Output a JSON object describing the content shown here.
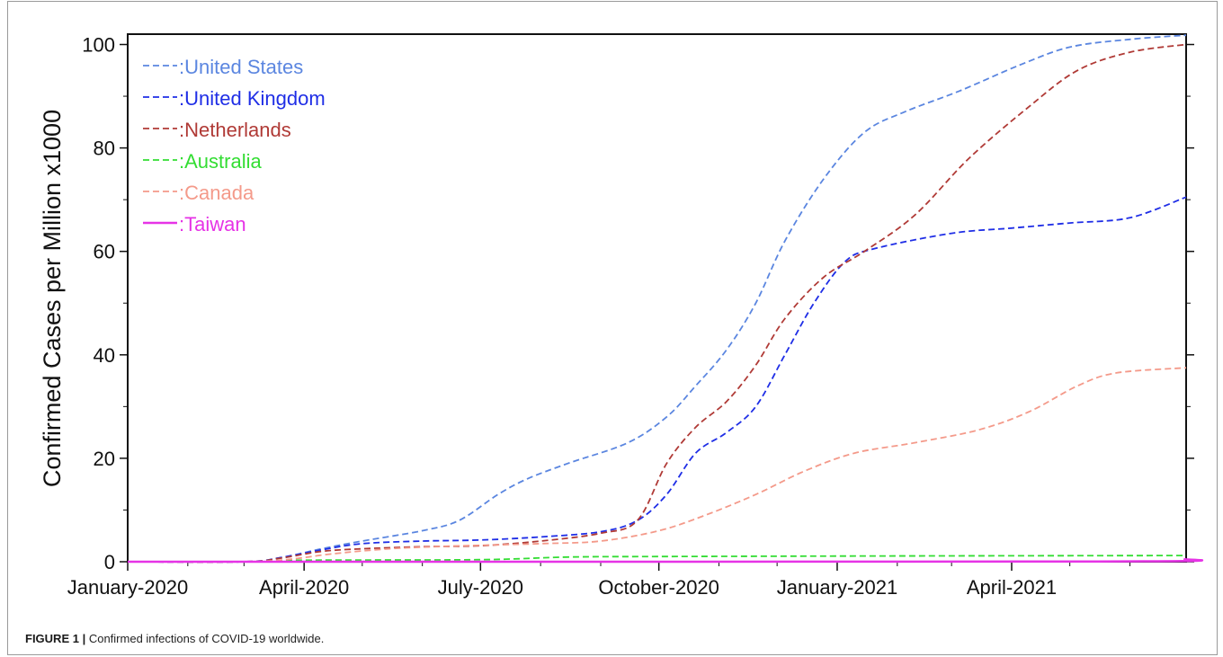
{
  "caption": {
    "label": "FIGURE 1 |",
    "text": "Confirmed infections of COVID-19 worldwide."
  },
  "chart_data": {
    "type": "line",
    "title": "",
    "xlabel": "",
    "ylabel": "Confirmed Cases per Million x1000",
    "ylim": [
      0,
      102
    ],
    "xlim": [
      "2020-01-01",
      "2021-06-30"
    ],
    "grid": false,
    "legend_position": "top-left",
    "yticks": [
      0,
      20,
      40,
      60,
      80,
      100
    ],
    "xticks": [
      {
        "date": "2020-01-01",
        "label": "January-2020"
      },
      {
        "date": "2020-04-01",
        "label": "April-2020"
      },
      {
        "date": "2020-07-01",
        "label": "July-2020"
      },
      {
        "date": "2020-10-01",
        "label": "October-2020"
      },
      {
        "date": "2021-01-01",
        "label": "January-2021"
      },
      {
        "date": "2021-04-01",
        "label": "April-2021"
      }
    ],
    "series": [
      {
        "name": ":United States",
        "color": "#5b86e0",
        "dash": true,
        "points": [
          [
            "2020-01-01",
            0
          ],
          [
            "2020-03-01",
            0
          ],
          [
            "2020-03-20",
            0.8
          ],
          [
            "2020-04-10",
            2.5
          ],
          [
            "2020-05-01",
            4
          ],
          [
            "2020-06-01",
            6
          ],
          [
            "2020-06-20",
            8
          ],
          [
            "2020-07-10",
            13
          ],
          [
            "2020-07-25",
            16
          ],
          [
            "2020-08-15",
            19
          ],
          [
            "2020-09-15",
            23
          ],
          [
            "2020-10-05",
            28
          ],
          [
            "2020-10-20",
            34
          ],
          [
            "2020-11-05",
            41
          ],
          [
            "2020-11-20",
            50
          ],
          [
            "2020-12-05",
            62
          ],
          [
            "2020-12-25",
            74
          ],
          [
            "2021-01-15",
            83
          ],
          [
            "2021-02-05",
            87
          ],
          [
            "2021-03-05",
            91
          ],
          [
            "2021-04-05",
            96
          ],
          [
            "2021-05-01",
            99.5
          ],
          [
            "2021-06-01",
            101
          ],
          [
            "2021-06-30",
            101.8
          ]
        ]
      },
      {
        "name": ":United Kingdom",
        "color": "#1f2ee6",
        "dash": true,
        "points": [
          [
            "2020-01-01",
            0
          ],
          [
            "2020-03-01",
            0
          ],
          [
            "2020-03-20",
            0.8
          ],
          [
            "2020-04-10",
            2.3
          ],
          [
            "2020-05-01",
            3.5
          ],
          [
            "2020-06-01",
            4
          ],
          [
            "2020-07-01",
            4.2
          ],
          [
            "2020-08-01",
            4.8
          ],
          [
            "2020-09-01",
            5.8
          ],
          [
            "2020-09-20",
            8
          ],
          [
            "2020-10-05",
            13
          ],
          [
            "2020-10-20",
            21
          ],
          [
            "2020-11-05",
            25
          ],
          [
            "2020-11-20",
            30
          ],
          [
            "2020-12-05",
            40
          ],
          [
            "2020-12-20",
            50
          ],
          [
            "2021-01-05",
            58
          ],
          [
            "2021-01-20",
            60.5
          ],
          [
            "2021-03-01",
            63.5
          ],
          [
            "2021-04-01",
            64.5
          ],
          [
            "2021-05-01",
            65.5
          ],
          [
            "2021-06-01",
            66.5
          ],
          [
            "2021-06-30",
            70.5
          ]
        ]
      },
      {
        "name": ":Netherlands",
        "color": "#b03a36",
        "dash": true,
        "points": [
          [
            "2020-01-01",
            0
          ],
          [
            "2020-03-01",
            0
          ],
          [
            "2020-03-20",
            0.7
          ],
          [
            "2020-04-10",
            2
          ],
          [
            "2020-05-01",
            2.5
          ],
          [
            "2020-06-01",
            2.9
          ],
          [
            "2020-07-01",
            3.1
          ],
          [
            "2020-08-01",
            4
          ],
          [
            "2020-09-01",
            5.5
          ],
          [
            "2020-09-20",
            8
          ],
          [
            "2020-10-05",
            19
          ],
          [
            "2020-10-20",
            26
          ],
          [
            "2020-11-05",
            31
          ],
          [
            "2020-11-20",
            38
          ],
          [
            "2020-12-05",
            47
          ],
          [
            "2020-12-25",
            55
          ],
          [
            "2021-01-15",
            60
          ],
          [
            "2021-02-10",
            67
          ],
          [
            "2021-03-10",
            78
          ],
          [
            "2021-04-10",
            88
          ],
          [
            "2021-05-05",
            95
          ],
          [
            "2021-06-01",
            98.5
          ],
          [
            "2021-06-30",
            100
          ]
        ]
      },
      {
        "name": ":Australia",
        "color": "#33dd33",
        "dash": true,
        "points": [
          [
            "2020-01-01",
            0
          ],
          [
            "2020-03-01",
            0
          ],
          [
            "2020-04-01",
            0.3
          ],
          [
            "2020-07-01",
            0.4
          ],
          [
            "2020-08-15",
            0.9
          ],
          [
            "2020-10-01",
            1
          ],
          [
            "2021-01-01",
            1.1
          ],
          [
            "2021-06-30",
            1.2
          ]
        ]
      },
      {
        "name": ":Canada",
        "color": "#f49a8a",
        "dash": true,
        "points": [
          [
            "2020-01-01",
            0
          ],
          [
            "2020-03-01",
            0
          ],
          [
            "2020-03-25",
            0.5
          ],
          [
            "2020-04-15",
            1.5
          ],
          [
            "2020-05-15",
            2.5
          ],
          [
            "2020-06-15",
            3
          ],
          [
            "2020-08-01",
            3.5
          ],
          [
            "2020-09-01",
            4
          ],
          [
            "2020-10-01",
            6
          ],
          [
            "2020-10-25",
            9
          ],
          [
            "2020-11-20",
            13
          ],
          [
            "2020-12-15",
            17.5
          ],
          [
            "2021-01-10",
            21
          ],
          [
            "2021-02-10",
            23
          ],
          [
            "2021-03-15",
            25.5
          ],
          [
            "2021-04-10",
            29
          ],
          [
            "2021-05-05",
            34
          ],
          [
            "2021-05-25",
            36.5
          ],
          [
            "2021-06-30",
            37.5
          ]
        ]
      },
      {
        "name": ":Taiwan",
        "color": "#e633e6",
        "dash": false,
        "points": [
          [
            "2020-01-01",
            0
          ],
          [
            "2021-05-15",
            0.05
          ],
          [
            "2021-06-30",
            0.5
          ]
        ]
      }
    ]
  }
}
